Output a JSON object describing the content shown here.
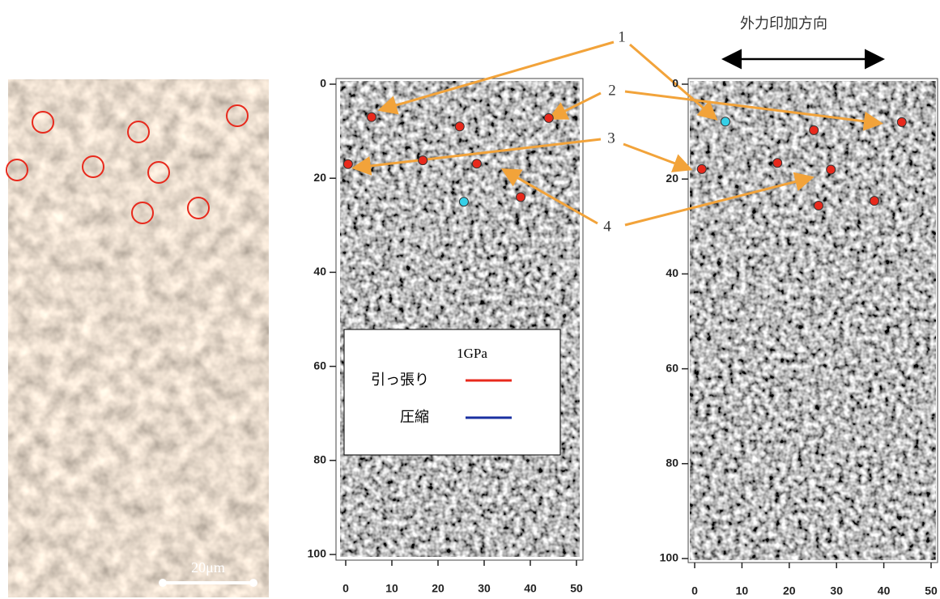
{
  "micrograph": {
    "scale_bar": "20μm"
  },
  "annotation_labels": [
    "1",
    "2",
    "3",
    "4"
  ],
  "chart_data": [
    {
      "type": "scatter",
      "x": [
        5.6,
        24.7,
        44,
        0.5,
        16.7,
        28.4,
        25.6,
        37.9
      ],
      "y": [
        7,
        9,
        7.2,
        17,
        16.2,
        16.9,
        25,
        24
      ],
      "colors": [
        "#e8291c",
        "#e8291c",
        "#e8291c",
        "#e8291c",
        "#e8291c",
        "#e8291c",
        "#35d0e8",
        "#e8291c"
      ],
      "xlim": [
        0,
        50
      ],
      "ylim": [
        0,
        100
      ],
      "y_inverted": true,
      "xticks": [
        0,
        10,
        20,
        30,
        40,
        50
      ],
      "yticks": [
        0,
        20,
        40,
        60,
        80,
        100
      ],
      "legend": {
        "title": "1GPa",
        "entries": [
          {
            "name": "引っ張り",
            "color": "#e8291c"
          },
          {
            "name": "圧縮",
            "color": "#1a2fa0"
          }
        ]
      }
    },
    {
      "type": "scatter",
      "annotation": "外力印加方向",
      "x": [
        6.5,
        25.2,
        43.8,
        1.5,
        17.5,
        28.8,
        26.2,
        38
      ],
      "y": [
        7.9,
        9.7,
        8,
        17.9,
        16.6,
        18,
        25.6,
        24.6
      ],
      "colors": [
        "#35d0e8",
        "#e8291c",
        "#e8291c",
        "#e8291c",
        "#e8291c",
        "#e8291c",
        "#e8291c",
        "#e8291c"
      ],
      "xlim": [
        0,
        50
      ],
      "ylim": [
        0,
        100
      ],
      "y_inverted": true,
      "xticks": [
        0,
        10,
        20,
        30,
        40,
        50
      ],
      "yticks": [
        0,
        20,
        40,
        60,
        80,
        100
      ]
    }
  ]
}
